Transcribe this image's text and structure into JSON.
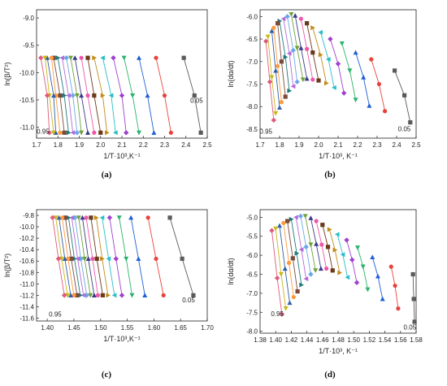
{
  "series_colors": [
    "#5a5a5a",
    "#e8423c",
    "#1f5fd6",
    "#2ab36b",
    "#a040cf",
    "#2abfc8",
    "#c28b18",
    "#6a3a1a",
    "#ee57a8",
    "#3a3a8c",
    "#6ea03a",
    "#6aa7e8",
    "#b26ad8",
    "#1e7a7a",
    "#7b4a3a",
    "#ff9a3a",
    "#2f5fa8",
    "#c8b91a",
    "#e05a7a"
  ],
  "chart_data": [
    {
      "panel_label": "(a)",
      "type": "scatter",
      "xlabel": "1/T·10³,K⁻¹",
      "ylabel": "ln(β/T²)",
      "xlim": [
        1.7,
        2.5
      ],
      "ylim": [
        -11.2,
        -8.85
      ],
      "xticks": [
        "1.7",
        "1.8",
        "1.9",
        "2.0",
        "2.1",
        "2.2",
        "2.3",
        "2.4",
        "2.5"
      ],
      "yticks": [
        "-11.0",
        "-10.5",
        "-10.0",
        "-9.5",
        "-9.0"
      ],
      "annotations": [
        {
          "text": "0.95",
          "x": 1.73,
          "y": -11.12
        },
        {
          "text": "0.05",
          "x": 2.45,
          "y": -10.55
        }
      ],
      "beta_levels": [
        -9.73,
        -10.42,
        -11.1
      ],
      "series": [
        {
          "x": [
            2.39,
            2.44,
            2.47
          ]
        },
        {
          "x": [
            2.26,
            2.3,
            2.33
          ]
        },
        {
          "x": [
            2.18,
            2.22,
            2.25
          ]
        },
        {
          "x": [
            2.11,
            2.15,
            2.18
          ]
        },
        {
          "x": [
            2.06,
            2.1,
            2.12
          ]
        },
        {
          "x": [
            2.01,
            2.05,
            2.07
          ]
        },
        {
          "x": [
            1.97,
            2.01,
            2.03
          ]
        },
        {
          "x": [
            1.94,
            1.97,
            2.0
          ]
        },
        {
          "x": [
            1.91,
            1.94,
            1.97
          ]
        },
        {
          "x": [
            1.88,
            1.91,
            1.94
          ]
        },
        {
          "x": [
            1.86,
            1.89,
            1.91
          ]
        },
        {
          "x": [
            1.84,
            1.87,
            1.89
          ]
        },
        {
          "x": [
            1.82,
            1.85,
            1.87
          ]
        },
        {
          "x": [
            1.8,
            1.83,
            1.85
          ]
        },
        {
          "x": [
            1.78,
            1.81,
            1.83
          ]
        },
        {
          "x": [
            1.77,
            1.79,
            1.81
          ]
        },
        {
          "x": [
            1.75,
            1.78,
            1.79
          ]
        },
        {
          "x": [
            1.74,
            1.76,
            1.78
          ]
        },
        {
          "x": [
            1.72,
            1.75,
            1.76
          ]
        }
      ]
    },
    {
      "panel_label": "(b)",
      "type": "scatter",
      "xlabel": "1/T·10³, K⁻¹",
      "ylabel": "ln(dα/dt)",
      "xlim": [
        1.7,
        2.5
      ],
      "ylim": [
        -8.7,
        -5.85
      ],
      "xticks": [
        "1.7",
        "1.8",
        "1.9",
        "2.0",
        "2.1",
        "2.2",
        "2.3",
        "2.4",
        "2.5"
      ],
      "yticks": [
        "-8.5",
        "-8.0",
        "-7.5",
        "-7.0",
        "-6.5",
        "-6.0"
      ],
      "annotations": [
        {
          "text": "0.95",
          "x": 1.73,
          "y": -8.6
        },
        {
          "text": "0.05",
          "x": 2.44,
          "y": -8.55
        }
      ],
      "series": [
        {
          "x": [
            2.39,
            2.44,
            2.47
          ],
          "y": [
            -7.2,
            -7.75,
            -8.35
          ]
        },
        {
          "x": [
            2.27,
            2.31,
            2.34
          ],
          "y": [
            -6.95,
            -7.5,
            -8.1
          ]
        },
        {
          "x": [
            2.19,
            2.23,
            2.26
          ],
          "y": [
            -6.8,
            -7.35,
            -7.98
          ]
        },
        {
          "x": [
            2.12,
            2.16,
            2.19
          ],
          "y": [
            -6.6,
            -7.2,
            -7.85
          ]
        },
        {
          "x": [
            2.06,
            2.1,
            2.13
          ],
          "y": [
            -6.5,
            -7.05,
            -7.7
          ]
        },
        {
          "x": [
            2.01,
            2.05,
            2.08
          ],
          "y": [
            -6.35,
            -6.95,
            -7.58
          ]
        },
        {
          "x": [
            1.97,
            2.01,
            2.04
          ],
          "y": [
            -6.25,
            -6.85,
            -7.48
          ]
        },
        {
          "x": [
            1.94,
            1.97,
            2.0
          ],
          "y": [
            -6.15,
            -6.8,
            -7.42
          ]
        },
        {
          "x": [
            1.91,
            1.94,
            1.97
          ],
          "y": [
            -6.05,
            -6.72,
            -7.4
          ]
        },
        {
          "x": [
            1.88,
            1.91,
            1.94
          ],
          "y": [
            -5.98,
            -6.7,
            -7.38
          ]
        },
        {
          "x": [
            1.86,
            1.89,
            1.92
          ],
          "y": [
            -5.95,
            -6.7,
            -7.4
          ]
        },
        {
          "x": [
            1.84,
            1.87,
            1.89
          ],
          "y": [
            -6.0,
            -6.75,
            -7.45
          ]
        },
        {
          "x": [
            1.82,
            1.85,
            1.87
          ],
          "y": [
            -6.05,
            -6.82,
            -7.55
          ]
        },
        {
          "x": [
            1.8,
            1.83,
            1.85
          ],
          "y": [
            -6.1,
            -6.9,
            -7.65
          ]
        },
        {
          "x": [
            1.79,
            1.81,
            1.83
          ],
          "y": [
            -6.15,
            -7.0,
            -7.78
          ]
        },
        {
          "x": [
            1.77,
            1.79,
            1.81
          ],
          "y": [
            -6.25,
            -7.1,
            -7.9
          ]
        },
        {
          "x": [
            1.76,
            1.78,
            1.8
          ],
          "y": [
            -6.32,
            -7.2,
            -8.02
          ]
        },
        {
          "x": [
            1.74,
            1.76,
            1.78
          ],
          "y": [
            -6.45,
            -7.35,
            -8.15
          ]
        },
        {
          "x": [
            1.73,
            1.75,
            1.77
          ],
          "y": [
            -6.55,
            -7.45,
            -8.3
          ]
        }
      ]
    },
    {
      "panel_label": "(c)",
      "type": "scatter",
      "xlabel": "1/T·10³,K⁻¹",
      "ylabel": "ln(β/T²)",
      "xlim": [
        1.38,
        1.7
      ],
      "ylim": [
        -11.65,
        -9.7
      ],
      "xticks": [
        "1.40",
        "1.45",
        "1.50",
        "1.55",
        "1.60",
        "1.65",
        "1.70"
      ],
      "yticks": [
        "-11.6",
        "-11.4",
        "-11.2",
        "-11.0",
        "-10.8",
        "-10.6",
        "-10.4",
        "-10.2",
        "-10.0",
        "-9.8"
      ],
      "annotations": [
        {
          "text": "0.95",
          "x": 1.415,
          "y": -11.57
        },
        {
          "text": "0.05",
          "x": 1.665,
          "y": -11.32
        }
      ],
      "beta_levels": [
        -9.84,
        -10.56,
        -11.2
      ],
      "series": [
        {
          "x": [
            1.63,
            1.653,
            1.674
          ]
        },
        {
          "x": [
            1.589,
            1.604,
            1.618
          ]
        },
        {
          "x": [
            1.557,
            1.571,
            1.583
          ]
        },
        {
          "x": [
            1.535,
            1.548,
            1.559
          ]
        },
        {
          "x": [
            1.517,
            1.529,
            1.54
          ]
        },
        {
          "x": [
            1.503,
            1.515,
            1.526
          ]
        },
        {
          "x": [
            1.492,
            1.503,
            1.514
          ]
        },
        {
          "x": [
            1.482,
            1.493,
            1.504
          ]
        },
        {
          "x": [
            1.473,
            1.485,
            1.495
          ]
        },
        {
          "x": [
            1.466,
            1.477,
            1.488
          ]
        },
        {
          "x": [
            1.459,
            1.47,
            1.481
          ]
        },
        {
          "x": [
            1.452,
            1.463,
            1.474
          ]
        },
        {
          "x": [
            1.446,
            1.457,
            1.468
          ]
        },
        {
          "x": [
            1.44,
            1.451,
            1.462
          ]
        },
        {
          "x": [
            1.434,
            1.445,
            1.456
          ]
        },
        {
          "x": [
            1.428,
            1.439,
            1.45
          ]
        },
        {
          "x": [
            1.422,
            1.433,
            1.444
          ]
        },
        {
          "x": [
            1.416,
            1.427,
            1.438
          ]
        },
        {
          "x": [
            1.41,
            1.421,
            1.432
          ]
        }
      ]
    },
    {
      "panel_label": "(d)",
      "type": "scatter",
      "xlabel": "1/T·10³, K⁻¹",
      "ylabel": "ln(dα/dt)",
      "xlim": [
        1.38,
        1.58
      ],
      "ylim": [
        -8.05,
        -4.8
      ],
      "xticks": [
        "1.38",
        "1.40",
        "1.42",
        "1.44",
        "1.46",
        "1.48",
        "1.50",
        "1.52",
        "1.54",
        "1.56",
        "1.58"
      ],
      "yticks": [
        "-8.0",
        "-7.5",
        "-7.0",
        "-6.5",
        "-6.0",
        "-5.5",
        "-5.0"
      ],
      "annotations": [
        {
          "text": "0.95",
          "x": 1.402,
          "y": -7.6
        },
        {
          "text": "0.05",
          "x": 1.572,
          "y": -7.95
        }
      ],
      "series": [
        {
          "x": [
            1.576,
            1.577,
            1.578
          ],
          "y": [
            -6.5,
            -7.15,
            -7.75
          ]
        },
        {
          "x": [
            1.548,
            1.553,
            1.557
          ],
          "y": [
            -6.3,
            -6.8,
            -7.4
          ]
        },
        {
          "x": [
            1.524,
            1.531,
            1.537
          ],
          "y": [
            -6.05,
            -6.55,
            -7.15
          ]
        },
        {
          "x": [
            1.505,
            1.512,
            1.518
          ],
          "y": [
            -5.8,
            -6.3,
            -6.9
          ]
        },
        {
          "x": [
            1.491,
            1.498,
            1.504
          ],
          "y": [
            -5.6,
            -6.12,
            -6.72
          ]
        },
        {
          "x": [
            1.479,
            1.486,
            1.492
          ],
          "y": [
            -5.45,
            -5.98,
            -6.58
          ]
        },
        {
          "x": [
            1.469,
            1.476,
            1.482
          ],
          "y": [
            -5.32,
            -5.86,
            -6.46
          ]
        },
        {
          "x": [
            1.46,
            1.467,
            1.473
          ],
          "y": [
            -5.2,
            -5.78,
            -6.4
          ]
        },
        {
          "x": [
            1.452,
            1.459,
            1.465
          ],
          "y": [
            -5.1,
            -5.72,
            -6.35
          ]
        },
        {
          "x": [
            1.445,
            1.452,
            1.458
          ],
          "y": [
            -5.02,
            -5.7,
            -6.35
          ]
        },
        {
          "x": [
            1.438,
            1.445,
            1.451
          ],
          "y": [
            -4.97,
            -5.72,
            -6.4
          ]
        },
        {
          "x": [
            1.432,
            1.439,
            1.445
          ],
          "y": [
            -4.97,
            -5.78,
            -6.5
          ]
        },
        {
          "x": [
            1.426,
            1.433,
            1.439
          ],
          "y": [
            -5.0,
            -5.85,
            -6.62
          ]
        },
        {
          "x": [
            1.42,
            1.427,
            1.433
          ],
          "y": [
            -5.05,
            -5.95,
            -6.78
          ]
        },
        {
          "x": [
            1.415,
            1.422,
            1.428
          ],
          "y": [
            -5.1,
            -6.08,
            -6.95
          ]
        },
        {
          "x": [
            1.41,
            1.417,
            1.423
          ],
          "y": [
            -5.15,
            -6.2,
            -7.1
          ]
        },
        {
          "x": [
            1.405,
            1.412,
            1.418
          ],
          "y": [
            -5.22,
            -6.35,
            -7.25
          ]
        },
        {
          "x": [
            1.4,
            1.407,
            1.413
          ],
          "y": [
            -5.3,
            -6.5,
            -7.4
          ]
        },
        {
          "x": [
            1.395,
            1.402,
            1.408
          ],
          "y": [
            -5.35,
            -6.6,
            -7.55
          ]
        }
      ]
    }
  ]
}
